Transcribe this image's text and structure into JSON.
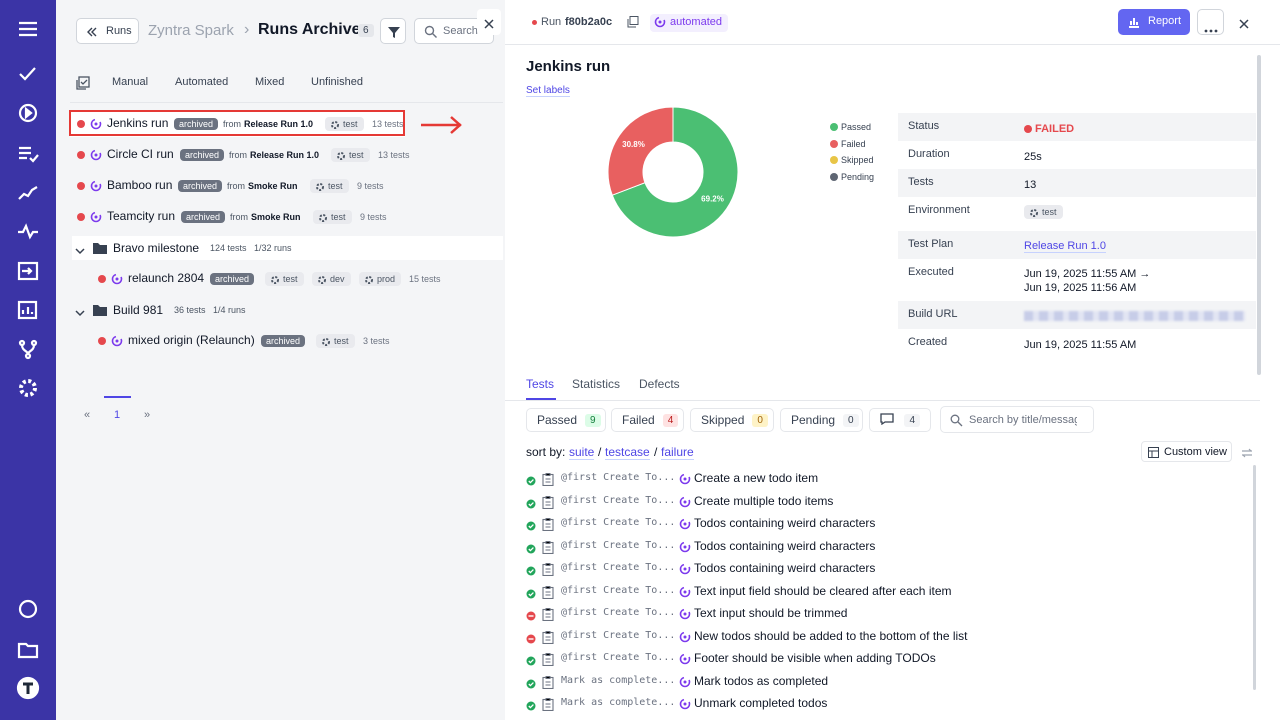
{
  "header": {
    "back": "Runs",
    "project": "Zyntra Spark",
    "separator": "›",
    "title": "Runs Archive",
    "count": "6",
    "search_placeholder": "Search"
  },
  "filters": [
    "Manual",
    "Automated",
    "Mixed",
    "Unfinished"
  ],
  "runs": [
    {
      "name": "Jenkins run",
      "badge": "archived",
      "from": "from",
      "source": "Release Run 1.0",
      "tags": [
        "test"
      ],
      "tests": "13 tests"
    },
    {
      "name": "Circle CI run",
      "badge": "archived",
      "from": "from",
      "source": "Release Run 1.0",
      "tags": [
        "test"
      ],
      "tests": "13 tests"
    },
    {
      "name": "Bamboo run",
      "badge": "archived",
      "from": "from",
      "source": "Smoke Run",
      "tags": [
        "test"
      ],
      "tests": "9 tests"
    },
    {
      "name": "Teamcity run",
      "badge": "archived",
      "from": "from",
      "source": "Smoke Run",
      "tags": [
        "test"
      ],
      "tests": "9 tests"
    }
  ],
  "groups": [
    {
      "name": "Bravo milestone",
      "tests": "124 tests",
      "runs": "1/32 runs",
      "items": [
        {
          "name": "relaunch 2804",
          "badge": "archived",
          "tags": [
            "test",
            "dev",
            "prod"
          ],
          "tests": "15 tests"
        }
      ]
    },
    {
      "name": "Build 981",
      "tests": "36 tests",
      "runs": "1/4 runs",
      "items": [
        {
          "name": "mixed origin (Relaunch)",
          "badge": "archived",
          "tags": [
            "test"
          ],
          "tests": "3 tests"
        }
      ]
    }
  ],
  "pagination": {
    "prev": "«",
    "page": "1",
    "next": "»"
  },
  "detail": {
    "run_label": "Run",
    "run_id": "f80b2a0c",
    "kind": "automated",
    "report": "Report",
    "title": "Jenkins run",
    "set_labels": "Set labels",
    "fields": [
      {
        "label": "Status",
        "value": "FAILED"
      },
      {
        "label": "Duration",
        "value": "25s"
      },
      {
        "label": "Tests",
        "value": "13"
      },
      {
        "label": "Environment",
        "value": "test"
      },
      {
        "label": "Test Plan",
        "value": "Release Run 1.0"
      },
      {
        "label": "Executed",
        "value": "Jun 19, 2025 11:55 AM →",
        "value2": "Jun 19, 2025 11:56 AM"
      },
      {
        "label": "Build URL"
      },
      {
        "label": "Created",
        "value": "Jun 19, 2025 11:55 AM"
      }
    ],
    "tabs": [
      "Tests",
      "Statistics",
      "Defects"
    ],
    "chips": [
      {
        "label": "Passed",
        "count": "9"
      },
      {
        "label": "Failed",
        "count": "4"
      },
      {
        "label": "Skipped",
        "count": "0"
      },
      {
        "label": "Pending",
        "count": "0"
      },
      {
        "count": "4"
      }
    ],
    "search_placeholder": "Search by title/message",
    "sort": {
      "label": "sort by:",
      "separator": "/",
      "options": [
        "suite",
        "testcase",
        "failure"
      ]
    },
    "custom_view": "Custom view",
    "tests": [
      {
        "status": "passed",
        "suite": "@first Create To...",
        "title": "Create a new todo item"
      },
      {
        "status": "passed",
        "suite": "@first Create To...",
        "title": "Create multiple todo items"
      },
      {
        "status": "passed",
        "suite": "@first Create To...",
        "title": "Todos containing weird characters"
      },
      {
        "status": "passed",
        "suite": "@first Create To...",
        "title": "Todos containing weird characters"
      },
      {
        "status": "passed",
        "suite": "@first Create To...",
        "title": "Todos containing weird characters"
      },
      {
        "status": "passed",
        "suite": "@first Create To...",
        "title": "Text input field should be cleared after each item"
      },
      {
        "status": "failed",
        "suite": "@first Create To...",
        "title": "Text input should be trimmed"
      },
      {
        "status": "failed",
        "suite": "@first Create To...",
        "title": "New todos should be added to the bottom of the list"
      },
      {
        "status": "passed",
        "suite": "@first Create To...",
        "title": "Footer should be visible when adding TODOs"
      },
      {
        "status": "passed",
        "suite": "Mark as complete...",
        "title": "Mark todos as completed"
      },
      {
        "status": "passed",
        "suite": "Mark as complete...",
        "title": "Unmark completed todos"
      }
    ]
  },
  "chart_data": {
    "type": "pie",
    "categories": [
      "Passed",
      "Failed",
      "Skipped",
      "Pending"
    ],
    "values": [
      69.2,
      30.8,
      0,
      0
    ],
    "value_labels": [
      "69.2%",
      "30.8%",
      null,
      null
    ],
    "colors": [
      "#4bbf73",
      "#e86060",
      "#e8c547",
      "#5f6673"
    ]
  }
}
